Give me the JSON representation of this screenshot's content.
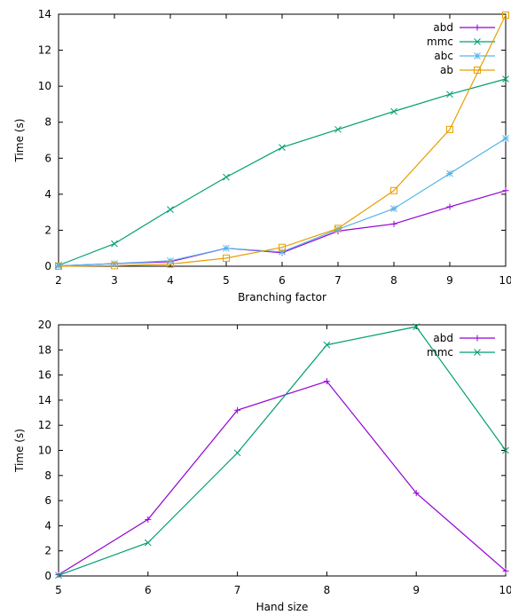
{
  "chart_data": [
    {
      "type": "line",
      "xlabel": "Branching factor",
      "ylabel": "Time (s)",
      "xlim": [
        2,
        10
      ],
      "ylim": [
        0,
        14
      ],
      "xticks": [
        2,
        3,
        4,
        5,
        6,
        7,
        8,
        9,
        10
      ],
      "yticks": [
        0,
        2,
        4,
        6,
        8,
        10,
        12,
        14
      ],
      "grid": false,
      "legend": "top-right",
      "x": [
        2,
        3,
        4,
        5,
        6,
        7,
        8,
        9,
        10
      ],
      "series": [
        {
          "name": "abd",
          "color": "#9400d3",
          "marker": "plus",
          "values": [
            0.02,
            0.15,
            0.25,
            1.0,
            0.75,
            1.95,
            2.35,
            3.3,
            4.2
          ]
        },
        {
          "name": "mmc",
          "color": "#009e73",
          "marker": "cross",
          "values": [
            0.05,
            1.25,
            3.15,
            4.95,
            6.6,
            7.6,
            8.6,
            9.55,
            10.4
          ]
        },
        {
          "name": "abc",
          "color": "#56b4e9",
          "marker": "star",
          "values": [
            0.02,
            0.15,
            0.3,
            1.0,
            0.8,
            2.05,
            3.2,
            5.15,
            7.1
          ]
        },
        {
          "name": "ab",
          "color": "#e69f00",
          "marker": "square",
          "values": [
            0.0,
            0.03,
            0.12,
            0.45,
            1.05,
            2.1,
            4.2,
            7.6,
            13.95
          ]
        }
      ]
    },
    {
      "type": "line",
      "xlabel": "Hand size",
      "ylabel": "Time (s)",
      "xlim": [
        5,
        10
      ],
      "ylim": [
        0,
        20
      ],
      "xticks": [
        5,
        6,
        7,
        8,
        9,
        10
      ],
      "yticks": [
        0,
        2,
        4,
        6,
        8,
        10,
        12,
        14,
        16,
        18,
        20
      ],
      "grid": false,
      "legend": "top-right",
      "x": [
        5,
        6,
        7,
        8,
        9,
        10
      ],
      "series": [
        {
          "name": "abd",
          "color": "#9400d3",
          "marker": "plus",
          "values": [
            0.1,
            4.5,
            13.2,
            15.5,
            6.6,
            0.4
          ]
        },
        {
          "name": "mmc",
          "color": "#009e73",
          "marker": "cross",
          "values": [
            0.05,
            2.65,
            9.8,
            18.4,
            19.85,
            10.0
          ]
        }
      ]
    }
  ]
}
